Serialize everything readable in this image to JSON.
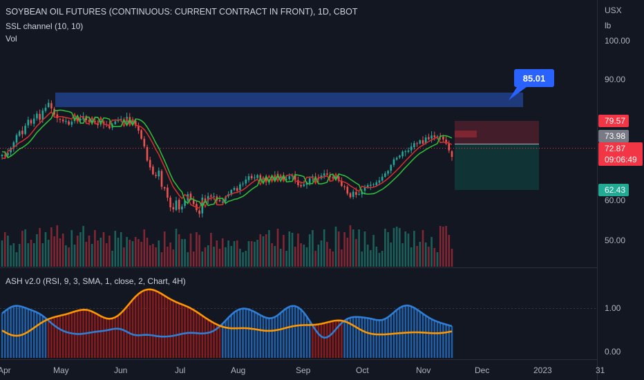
{
  "header": {
    "title": "SOYBEAN OIL FUTURES (CONTINUOUS: CURRENT CONTRACT IN FRONT), 1D, CBOT",
    "indicator1": "SSL channel (10, 10)",
    "indicator2": "Vol",
    "currency": "USX",
    "unit": "lb"
  },
  "oscillator": {
    "label": "ASH v2.0 (RSI, 9, 3, SMA, 1, close, 2, Chart, 4H)",
    "y_ticks": [
      "1.00",
      "0.00"
    ]
  },
  "price_axis": {
    "ticks": [
      "100.00",
      "90.00",
      "60.00",
      "50.00"
    ],
    "badges": {
      "upper": "79.57",
      "mid": "73.98",
      "last": "72.87",
      "countdown": "09:06:49",
      "lower": "62.43"
    }
  },
  "callout": {
    "label": "85.01"
  },
  "time_axis": {
    "labels": [
      "Apr",
      "May",
      "Jun",
      "Jul",
      "Aug",
      "Sep",
      "Oct",
      "Nov",
      "Dec",
      "2023",
      "31"
    ]
  },
  "colors": {
    "background": "#131722",
    "up_candle": "#26a69a",
    "down_candle": "#ef5350",
    "ssl_up": "#2ebd3a",
    "ssl_down": "#d32f2f",
    "zone": "#1e3a7a",
    "callout": "#2962ff",
    "ash_bull": "#1f5fa8",
    "ash_bear": "#8b1a1a",
    "ash_line_blue": "#2f7fd6",
    "ash_line_orange": "#ff9800",
    "badge_red": "#f23645",
    "badge_gray": "#787b86",
    "badge_green": "#22ab94"
  },
  "chart_data": {
    "type": "candlestick",
    "price_range": [
      44,
      102
    ],
    "closes": [
      73.4,
      73.2,
      73.9,
      75.1,
      76.5,
      78.3,
      79.2,
      78.5,
      80.6,
      82.1,
      81.2,
      82.4,
      83.6,
      82.1,
      84.4,
      85.1,
      86.3,
      84.9,
      83.4,
      82.5,
      82.2,
      81.7,
      81.8,
      80.9,
      81.6,
      82.5,
      81.9,
      82.3,
      83.0,
      82.0,
      81.6,
      81.9,
      81.4,
      80.8,
      81.8,
      81.0,
      80.9,
      80.0,
      80.9,
      81.7,
      81.9,
      82.3,
      81.7,
      82.8,
      81.3,
      81.7,
      80.6,
      79.4,
      77.4,
      75.5,
      72.0,
      70.3,
      68.6,
      68.2,
      69.5,
      65.5,
      65.1,
      62.8,
      60.4,
      59.9,
      62.1,
      59.9,
      60.6,
      62.1,
      63.7,
      62.3,
      61.2,
      59.7,
      58.8,
      62.8,
      62.1,
      63.2,
      63.1,
      63.2,
      62.1,
      61.9,
      61.8,
      63.0,
      63.7,
      64.7,
      65.2,
      64.5,
      66.1,
      66.3,
      67.3,
      68.1,
      67.6,
      67.8,
      68.4,
      67.3,
      67.8,
      66.6,
      67.2,
      67.0,
      68.5,
      67.8,
      68.1,
      67.4,
      67.4,
      68.1,
      68.5,
      67.2,
      65.9,
      65.6,
      66.1,
      66.6,
      67.6,
      68.1,
      67.4,
      67.4,
      68.3,
      68.8,
      68.5,
      67.9,
      67.6,
      68.0,
      66.9,
      65.7,
      65.4,
      63.8,
      62.9,
      64.3,
      63.5,
      63.7,
      64.3,
      65.4,
      65.9,
      66.0,
      66.1,
      66.6,
      67.1,
      68.0,
      68.8,
      69.4,
      70.9,
      72.3,
      72.7,
      73.2,
      74.2,
      74.3,
      74.5,
      75.5,
      76.3,
      76.1,
      77.0,
      76.2,
      77.7,
      77.3,
      78.2,
      77.8,
      78.0,
      77.8,
      77.2,
      76.2,
      74.5,
      72.9
    ],
    "volume_range": [
      0,
      100
    ],
    "volume": [
      38,
      50,
      45,
      31,
      34,
      21,
      33,
      52,
      54,
      34,
      39,
      34,
      47,
      56,
      34,
      50,
      39,
      57,
      44,
      60,
      41,
      48,
      31,
      28,
      53,
      32,
      45,
      50,
      59,
      36,
      45,
      33,
      53,
      38,
      42,
      50,
      34,
      45,
      23,
      52,
      42,
      50,
      28,
      43,
      39,
      37,
      43,
      40,
      36,
      54,
      42,
      31,
      33,
      28,
      38,
      21,
      51,
      29,
      35,
      25,
      55,
      47,
      40,
      40,
      21,
      48,
      22,
      50,
      46,
      22,
      28,
      31,
      49,
      29,
      38,
      26,
      41,
      28,
      38,
      30,
      37,
      38,
      26,
      21,
      23,
      37,
      37,
      36,
      39,
      47,
      44,
      47,
      53,
      34,
      30,
      55,
      26,
      46,
      23,
      51,
      49,
      29,
      48,
      34,
      32,
      28,
      47,
      53,
      23,
      32,
      38,
      54,
      36,
      26,
      22,
      58,
      51,
      25,
      50,
      42,
      60,
      54,
      40,
      54,
      22,
      51,
      32,
      24,
      46,
      29,
      20,
      23,
      55,
      50,
      35,
      56,
      58,
      56,
      34,
      51,
      48,
      28,
      52,
      30,
      36,
      53,
      35,
      29,
      43,
      27,
      21,
      59,
      58,
      59,
      46,
      26
    ],
    "oscillator_range": [
      0,
      1.5
    ],
    "ash_blue": [
      0.8,
      0.845,
      0.89,
      0.925,
      0.947,
      0.954,
      0.948,
      0.932,
      0.912,
      0.89,
      0.868,
      0.845,
      0.819,
      0.788,
      0.748,
      0.702,
      0.651,
      0.599,
      0.551,
      0.508,
      0.472,
      0.442,
      0.419,
      0.402,
      0.389,
      0.38,
      0.376,
      0.377,
      0.383,
      0.391,
      0.401,
      0.411,
      0.42,
      0.428,
      0.434,
      0.441,
      0.451,
      0.463,
      0.475,
      0.484,
      0.485,
      0.474,
      0.452,
      0.422,
      0.391,
      0.366,
      0.352,
      0.349,
      0.353,
      0.358,
      0.359,
      0.354,
      0.346,
      0.336,
      0.328,
      0.323,
      0.322,
      0.325,
      0.331,
      0.34,
      0.352,
      0.365,
      0.379,
      0.391,
      0.398,
      0.401,
      0.399,
      0.393,
      0.388,
      0.387,
      0.39,
      0.4,
      0.418,
      0.445,
      0.484,
      0.532,
      0.589,
      0.65,
      0.713,
      0.771,
      0.822,
      0.861,
      0.886,
      0.897,
      0.895,
      0.881,
      0.858,
      0.829,
      0.797,
      0.763,
      0.733,
      0.71,
      0.698,
      0.703,
      0.725,
      0.762,
      0.81,
      0.859,
      0.903,
      0.935,
      0.951,
      0.947,
      0.922,
      0.877,
      0.813,
      0.733,
      0.643,
      0.549,
      0.457,
      0.379,
      0.324,
      0.299,
      0.308,
      0.346,
      0.404,
      0.471,
      0.539,
      0.601,
      0.651,
      0.688,
      0.711,
      0.723,
      0.726,
      0.724,
      0.718,
      0.711,
      0.702,
      0.69,
      0.676,
      0.664,
      0.659,
      0.664,
      0.686,
      0.721,
      0.768,
      0.82,
      0.87,
      0.913,
      0.944,
      0.96,
      0.959,
      0.943,
      0.914,
      0.876,
      0.834,
      0.792,
      0.752,
      0.714,
      0.681,
      0.652,
      0.628,
      0.607,
      0.588,
      0.571,
      0.554,
      0.538
    ],
    "ash_orange": [
      0.45,
      0.414,
      0.383,
      0.359,
      0.344,
      0.339,
      0.345,
      0.362,
      0.389,
      0.423,
      0.462,
      0.503,
      0.545,
      0.585,
      0.622,
      0.654,
      0.682,
      0.704,
      0.722,
      0.737,
      0.751,
      0.765,
      0.78,
      0.798,
      0.817,
      0.836,
      0.853,
      0.866,
      0.873,
      0.871,
      0.859,
      0.837,
      0.808,
      0.775,
      0.742,
      0.714,
      0.695,
      0.688,
      0.696,
      0.719,
      0.756,
      0.807,
      0.868,
      0.937,
      1.008,
      1.078,
      1.142,
      1.197,
      1.24,
      1.271,
      1.287,
      1.29,
      1.28,
      1.26,
      1.231,
      1.197,
      1.16,
      1.124,
      1.089,
      1.058,
      1.03,
      1.005,
      0.982,
      0.958,
      0.932,
      0.903,
      0.869,
      0.832,
      0.792,
      0.751,
      0.711,
      0.672,
      0.635,
      0.601,
      0.571,
      0.545,
      0.524,
      0.509,
      0.498,
      0.493,
      0.492,
      0.493,
      0.495,
      0.496,
      0.495,
      0.491,
      0.484,
      0.475,
      0.465,
      0.455,
      0.447,
      0.442,
      0.441,
      0.443,
      0.45,
      0.46,
      0.473,
      0.488,
      0.504,
      0.519,
      0.532,
      0.543,
      0.551,
      0.556,
      0.559,
      0.56,
      0.561,
      0.563,
      0.567,
      0.574,
      0.585,
      0.598,
      0.614,
      0.629,
      0.642,
      0.651,
      0.654,
      0.649,
      0.636,
      0.614,
      0.585,
      0.552,
      0.516,
      0.481,
      0.448,
      0.42,
      0.399,
      0.383,
      0.373,
      0.368,
      0.366,
      0.367,
      0.37,
      0.374,
      0.378,
      0.383,
      0.388,
      0.393,
      0.398,
      0.402,
      0.406,
      0.409,
      0.411,
      0.411,
      0.409,
      0.406,
      0.402,
      0.398,
      0.394,
      0.392,
      0.392,
      0.395,
      0.401,
      0.409,
      0.419,
      0.43
    ]
  }
}
